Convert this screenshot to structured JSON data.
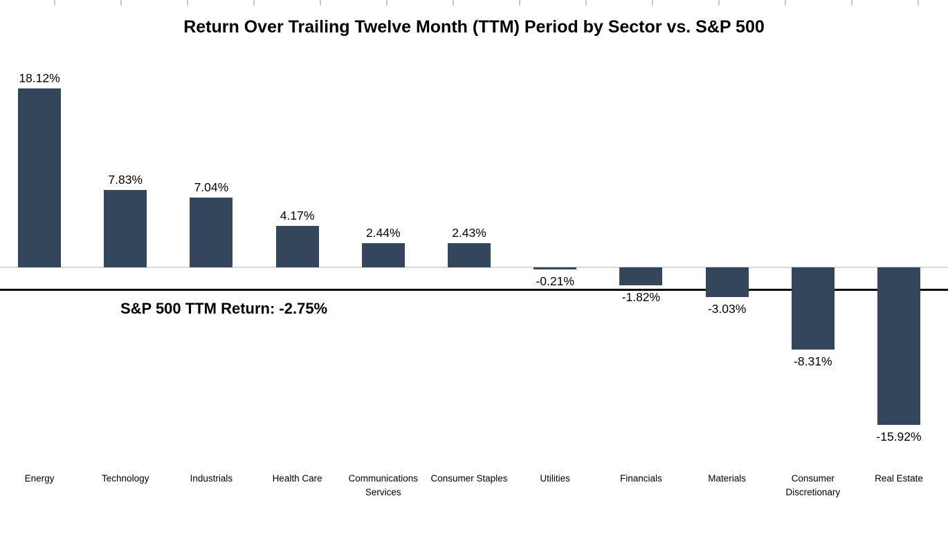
{
  "page": {
    "background": "#FFFFFF"
  },
  "chart_data": {
    "type": "bar",
    "title": "Return Over Trailing Twelve Month (TTM) Period by Sector vs. S&P 500",
    "categories": [
      "Energy",
      "Technology",
      "Industrials",
      "Health Care",
      "Communications Services",
      "Consumer Staples",
      "Utilities",
      "Financials",
      "Materials",
      "Consumer Discretionary",
      "Real Estate"
    ],
    "values": [
      18.12,
      7.83,
      7.04,
      4.17,
      2.44,
      2.43,
      -0.21,
      -1.82,
      -3.03,
      -8.31,
      -15.92
    ],
    "value_labels": [
      "18.12%",
      "7.83%",
      "7.04%",
      "4.17%",
      "2.44%",
      "2.43%",
      "-0.21%",
      "-1.82%",
      "-3.03%",
      "-8.31%",
      "-15.92%"
    ],
    "reference_line": {
      "label": "S&P 500 TTM Return: -2.75%",
      "value": -2.75,
      "color": "#000000"
    },
    "bar_color": "#34465C",
    "zero_axis_color": "#D8D8D8",
    "top_tick_color": "#C9C9C9",
    "xlabel": "",
    "ylabel": "",
    "ylim": [
      -18,
      20
    ],
    "grid": false,
    "legend": false
  }
}
